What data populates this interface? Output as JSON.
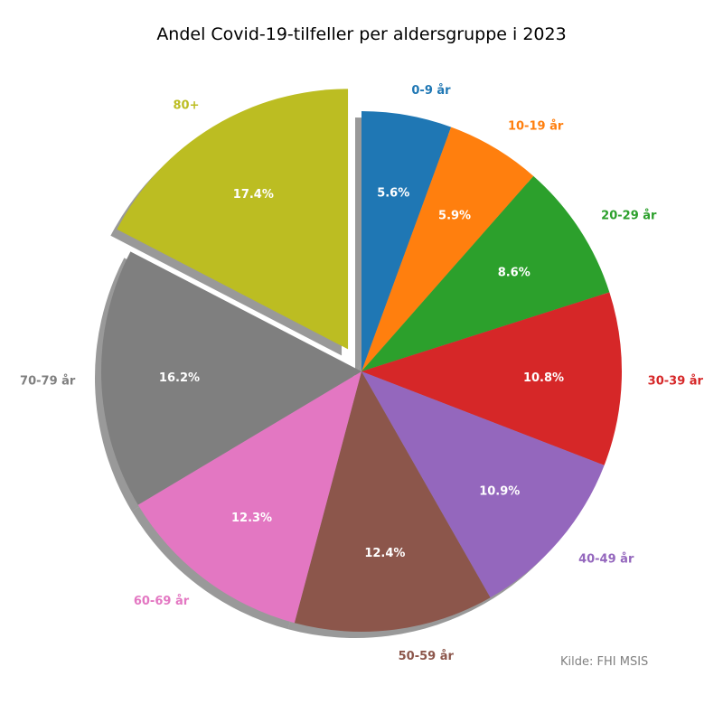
{
  "chart_data": {
    "type": "pie",
    "title": "Andel Covid-19-tilfeller per aldersgruppe i 2023",
    "categories": [
      "0-9 år",
      "10-19 år",
      "20-29 år",
      "30-39 år",
      "40-49 år",
      "50-59 år",
      "60-69 år",
      "70-79 år",
      "80+"
    ],
    "values": [
      5.6,
      5.9,
      8.6,
      10.8,
      10.9,
      12.4,
      12.3,
      16.2,
      17.4
    ],
    "value_labels": [
      "5.6%",
      "5.9%",
      "8.6%",
      "10.8%",
      "10.9%",
      "12.4%",
      "12.3%",
      "16.2%",
      "17.4%"
    ],
    "colors": [
      "#1f77b4",
      "#ff7f0e",
      "#2ca02c",
      "#d62728",
      "#9467bd",
      "#8c564b",
      "#e377c2",
      "#7f7f7f",
      "#bcbd22"
    ],
    "exploded": [
      "80+"
    ],
    "start_angle": "top",
    "direction": "clockwise",
    "shadow": true,
    "annotation": "Kilde: FHI MSIS"
  }
}
